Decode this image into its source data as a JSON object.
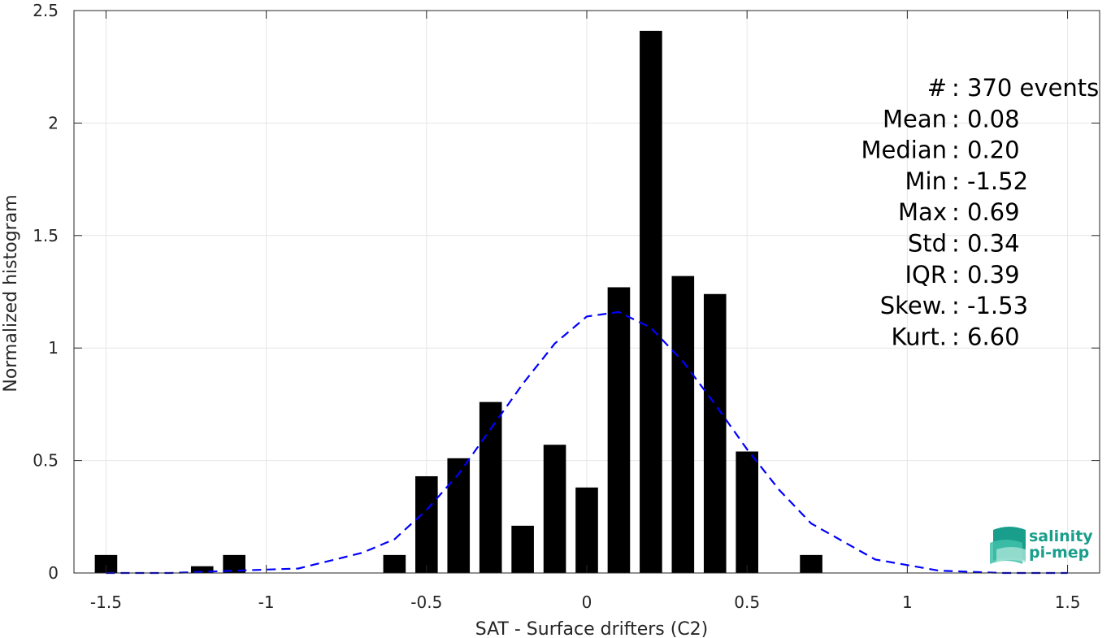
{
  "chart_data": {
    "type": "bar",
    "xlabel": "SAT - Surface drifters (C2)",
    "ylabel": "Normalized histogram",
    "xlim": [
      -1.6,
      1.6
    ],
    "ylim": [
      0,
      2.5
    ],
    "xticks": [
      -1.5,
      -1,
      -0.5,
      0,
      0.5,
      1,
      1.5
    ],
    "xtick_labels": [
      "-1.5",
      "-1",
      "-0.5",
      "0",
      "0.5",
      "1",
      "1.5"
    ],
    "yticks": [
      0,
      0.5,
      1,
      1.5,
      2,
      2.5
    ],
    "ytick_labels": [
      "0",
      "0.5",
      "1",
      "1.5",
      "2",
      "2.5"
    ],
    "grid": true,
    "bar_color": "#000000",
    "bar_width": 0.07,
    "bars": {
      "x": [
        -1.5,
        -1.2,
        -1.1,
        -0.6,
        -0.5,
        -0.4,
        -0.3,
        -0.2,
        -0.1,
        0.0,
        0.1,
        0.2,
        0.3,
        0.4,
        0.5,
        0.7
      ],
      "values": [
        0.08,
        0.03,
        0.08,
        0.08,
        0.43,
        0.51,
        0.76,
        0.21,
        0.57,
        0.38,
        1.27,
        2.41,
        1.32,
        1.24,
        0.54,
        0.08
      ]
    },
    "fit": {
      "style": "dashed",
      "color": "#0000ff",
      "x": [
        -1.5,
        -1.3,
        -1.1,
        -0.9,
        -0.7,
        -0.6,
        -0.5,
        -0.4,
        -0.3,
        -0.2,
        -0.1,
        0.0,
        0.1,
        0.2,
        0.3,
        0.4,
        0.5,
        0.6,
        0.7,
        0.9,
        1.1,
        1.3,
        1.5
      ],
      "values": [
        0.0,
        0.0,
        0.01,
        0.02,
        0.09,
        0.15,
        0.28,
        0.44,
        0.64,
        0.84,
        1.02,
        1.14,
        1.16,
        1.09,
        0.94,
        0.75,
        0.55,
        0.37,
        0.22,
        0.06,
        0.01,
        0.0,
        0.0
      ]
    },
    "stats": [
      "#  : 370 events",
      "Mean : 0.08",
      "Median : 0.20",
      "Min : -1.52",
      "Max : 0.69",
      "Std : 0.34",
      "IQR : 0.39",
      "Skew. : -1.53",
      "Kurt. : 6.60"
    ]
  },
  "logo": {
    "line1": "salinity",
    "line2": "pi-mep",
    "color": "#1a9e8c"
  }
}
